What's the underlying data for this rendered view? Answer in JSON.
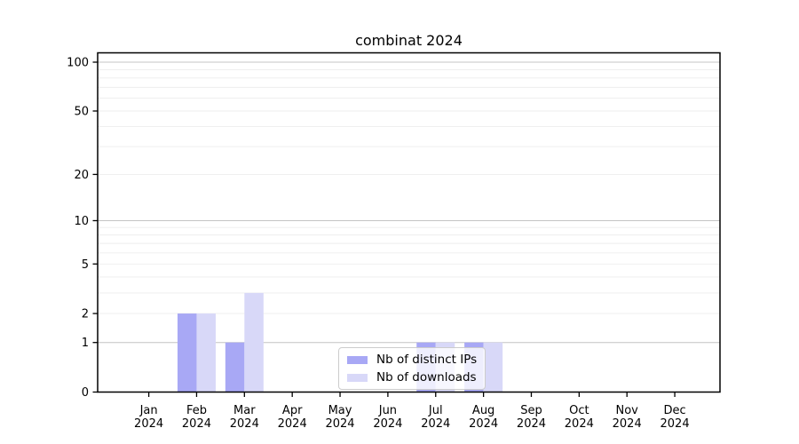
{
  "chart_data": {
    "type": "bar",
    "title": "combinat 2024",
    "categories": [
      "Jan 2024",
      "Feb 2024",
      "Mar 2024",
      "Apr 2024",
      "May 2024",
      "Jun 2024",
      "Jul 2024",
      "Aug 2024",
      "Sep 2024",
      "Oct 2024",
      "Nov 2024",
      "Dec 2024"
    ],
    "series": [
      {
        "name": "Nb of distinct IPs",
        "color": "#a8a8f5",
        "values": [
          0,
          2,
          1,
          0,
          0,
          0,
          1,
          1,
          0,
          0,
          0,
          0
        ]
      },
      {
        "name": "Nb of downloads",
        "color": "#d8d8f8",
        "values": [
          0,
          2,
          3,
          0,
          0,
          0,
          1,
          1,
          0,
          0,
          0,
          0
        ]
      }
    ],
    "y_axis": {
      "scale": "log1p",
      "tick_values": [
        0,
        1,
        2,
        5,
        10,
        20,
        50,
        100
      ],
      "major_gridlines": [
        1,
        10,
        100
      ],
      "minor_gridlines": [
        2,
        3,
        4,
        5,
        6,
        7,
        8,
        9,
        20,
        30,
        40,
        50,
        60,
        70,
        80,
        90
      ],
      "ylim": [
        0,
        113
      ]
    },
    "xlabel": "",
    "ylabel": "",
    "grid": true,
    "legend_position": "lower center",
    "colors": {
      "spine": "#000000",
      "major_grid": "#c4c4c4",
      "minor_grid": "#ededed",
      "tick_text": "#000000"
    }
  }
}
